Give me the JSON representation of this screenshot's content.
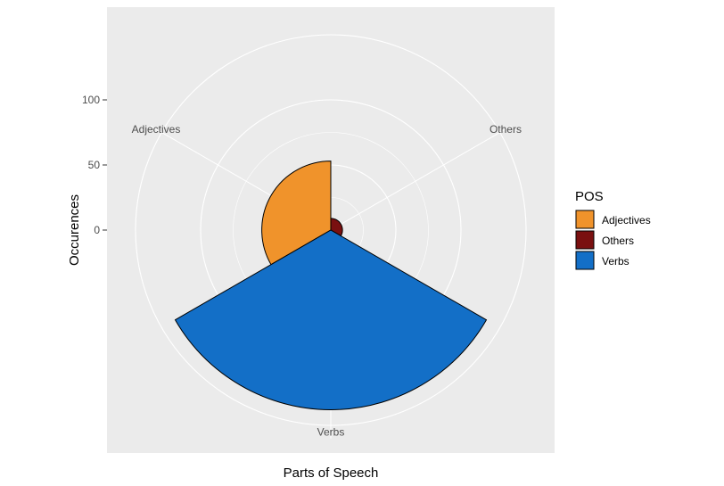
{
  "chart_data": {
    "type": "bar",
    "coord": "polar",
    "categories": [
      "Adjectives",
      "Others",
      "Verbs"
    ],
    "values": [
      53,
      9,
      138
    ],
    "colors": [
      "#F0932B",
      "#7A1010",
      "#136FC7"
    ],
    "xlabel": "Parts of Speech",
    "ylabel": "Occurences",
    "yticks": [
      0,
      50,
      100
    ],
    "grid": true,
    "legend": {
      "title": "POS",
      "position": "right",
      "entries": [
        "Adjectives",
        "Others",
        "Verbs"
      ]
    }
  }
}
